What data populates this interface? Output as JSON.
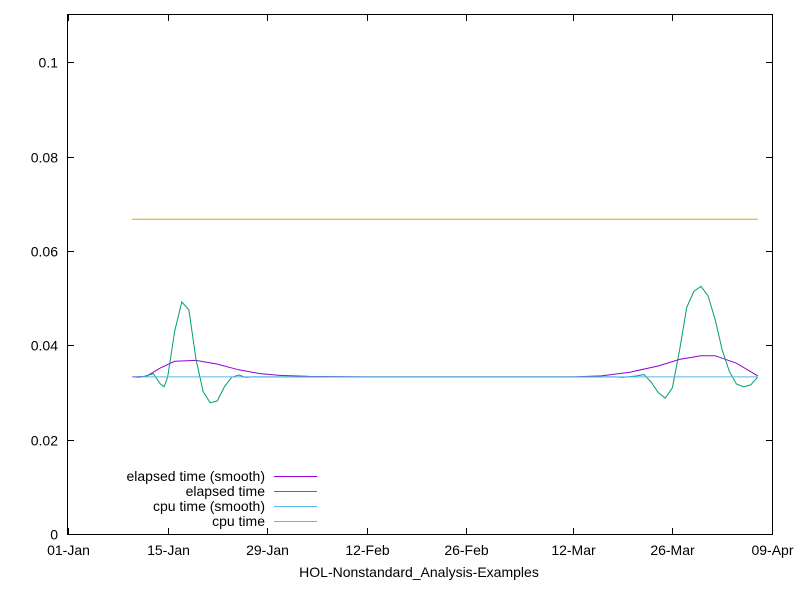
{
  "chart_data": {
    "type": "line",
    "title": "",
    "xlabel": "HOL-Nonstandard_Analysis-Examples",
    "ylabel": "",
    "x_axis_type": "date",
    "xlim": [
      "2000-01-01",
      "2000-04-09"
    ],
    "ylim": [
      0,
      0.11
    ],
    "x_ticks": [
      {
        "date": "2000-01-01",
        "label": "01-Jan"
      },
      {
        "date": "2000-01-15",
        "label": "15-Jan"
      },
      {
        "date": "2000-01-29",
        "label": "29-Jan"
      },
      {
        "date": "2000-02-12",
        "label": "12-Feb"
      },
      {
        "date": "2000-02-26",
        "label": "26-Feb"
      },
      {
        "date": "2000-03-12",
        "label": "12-Mar"
      },
      {
        "date": "2000-03-26",
        "label": "26-Mar"
      },
      {
        "date": "2000-04-09",
        "label": "09-Apr"
      }
    ],
    "y_ticks": [
      {
        "value": 0,
        "label": "0"
      },
      {
        "value": 0.02,
        "label": "0.02"
      },
      {
        "value": 0.04,
        "label": "0.04"
      },
      {
        "value": 0.06,
        "label": "0.06"
      },
      {
        "value": 0.08,
        "label": "0.08"
      },
      {
        "value": 0.1,
        "label": "0.1"
      }
    ],
    "grid": false,
    "legend_position": "bottom-left",
    "series": [
      {
        "name": "elapsed time (smooth)",
        "color": "#9400d3",
        "points": [
          [
            "2000-01-10",
            0.0333
          ],
          [
            "2000-01-12",
            0.0334
          ],
          [
            "2000-01-14",
            0.0352
          ],
          [
            "2000-01-16",
            0.0366
          ],
          [
            "2000-01-19",
            0.0368
          ],
          [
            "2000-01-22",
            0.036
          ],
          [
            "2000-01-25",
            0.0348
          ],
          [
            "2000-01-28",
            0.034
          ],
          [
            "2000-01-31",
            0.0336
          ],
          [
            "2000-02-04",
            0.0334
          ],
          [
            "2000-02-12",
            0.0333
          ],
          [
            "2000-03-12",
            0.0333
          ],
          [
            "2000-03-16",
            0.0335
          ],
          [
            "2000-03-20",
            0.0343
          ],
          [
            "2000-03-24",
            0.0356
          ],
          [
            "2000-03-27",
            0.037
          ],
          [
            "2000-03-30",
            0.0378
          ],
          [
            "2000-04-01",
            0.0378
          ],
          [
            "2000-04-04",
            0.0362
          ],
          [
            "2000-04-07",
            0.0335
          ]
        ]
      },
      {
        "name": "elapsed time",
        "color": "#009e73",
        "points": [
          [
            "2000-01-10",
            0.0333
          ],
          [
            "2000-01-11",
            0.0332
          ],
          [
            "2000-01-12",
            0.0335
          ],
          [
            "2000-01-13",
            0.034
          ],
          [
            "2000-01-14",
            0.0318
          ],
          [
            "2000-01-14T12:00",
            0.0312
          ],
          [
            "2000-01-15",
            0.0332
          ],
          [
            "2000-01-16",
            0.043
          ],
          [
            "2000-01-17",
            0.0492
          ],
          [
            "2000-01-18",
            0.0475
          ],
          [
            "2000-01-19",
            0.037
          ],
          [
            "2000-01-20",
            0.0302
          ],
          [
            "2000-01-21",
            0.0278
          ],
          [
            "2000-01-22",
            0.0282
          ],
          [
            "2000-01-23",
            0.0312
          ],
          [
            "2000-01-24",
            0.0332
          ],
          [
            "2000-01-25",
            0.0337
          ],
          [
            "2000-01-26",
            0.0332
          ],
          [
            "2000-01-27",
            0.0333
          ],
          [
            "2000-03-18",
            0.0333
          ],
          [
            "2000-03-19",
            0.0332
          ],
          [
            "2000-03-21",
            0.0335
          ],
          [
            "2000-03-22",
            0.0338
          ],
          [
            "2000-03-23",
            0.0322
          ],
          [
            "2000-03-24",
            0.03
          ],
          [
            "2000-03-25",
            0.0288
          ],
          [
            "2000-03-26",
            0.031
          ],
          [
            "2000-03-27",
            0.039
          ],
          [
            "2000-03-28",
            0.048
          ],
          [
            "2000-03-29",
            0.0514
          ],
          [
            "2000-03-30",
            0.0525
          ],
          [
            "2000-03-31",
            0.0505
          ],
          [
            "2000-04-01",
            0.0455
          ],
          [
            "2000-04-02",
            0.039
          ],
          [
            "2000-04-03",
            0.0345
          ],
          [
            "2000-04-04",
            0.0318
          ],
          [
            "2000-04-05",
            0.0312
          ],
          [
            "2000-04-06",
            0.0316
          ],
          [
            "2000-04-07",
            0.0333
          ]
        ]
      },
      {
        "name": "cpu time (smooth)",
        "color": "#56b4e9",
        "points": [
          [
            "2000-01-10",
            0.0333
          ],
          [
            "2000-01-12",
            0.0333
          ],
          [
            "2000-04-07",
            0.0333
          ]
        ]
      },
      {
        "name": "cpu time",
        "color": "#e69f00",
        "points": [
          [
            "2000-01-10",
            0.0667
          ],
          [
            "2000-04-07",
            0.0667
          ]
        ]
      }
    ]
  }
}
